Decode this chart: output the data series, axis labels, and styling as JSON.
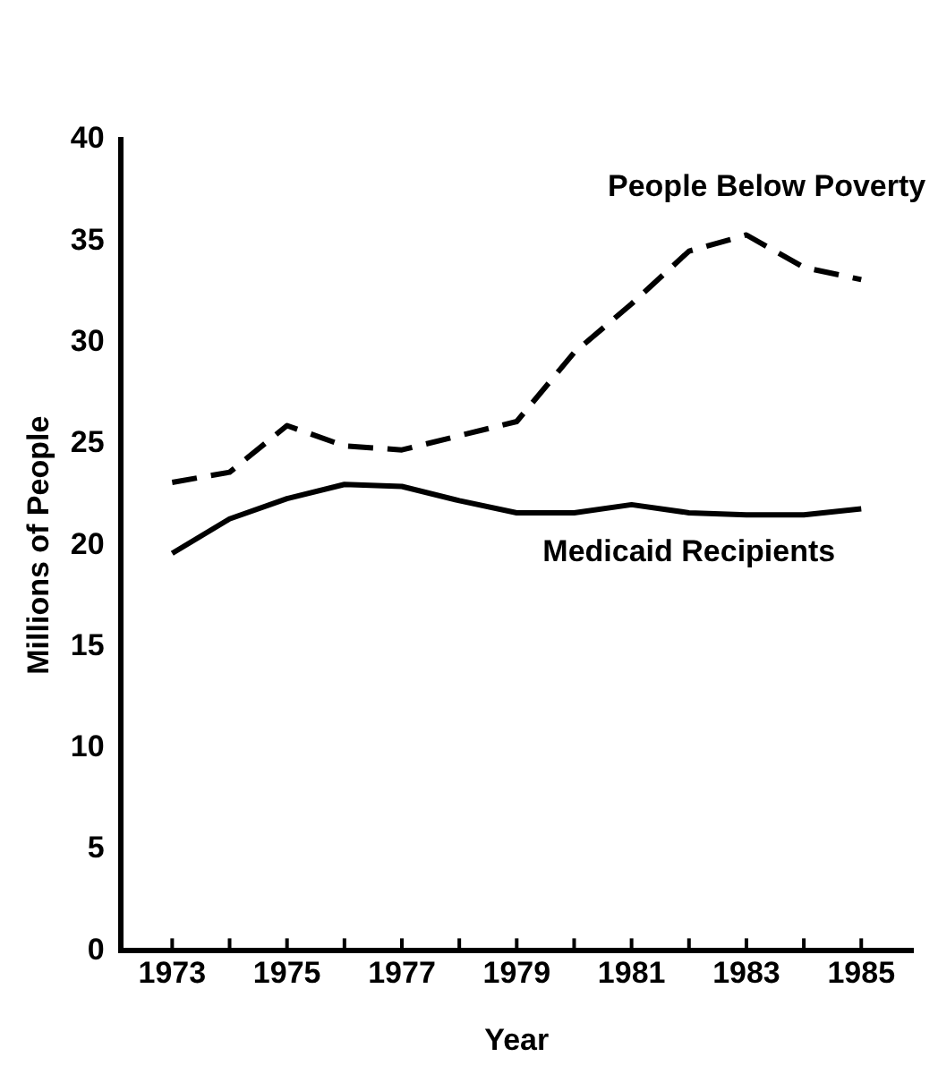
{
  "chart_data": {
    "type": "line",
    "xlabel": "Year",
    "ylabel": "Millions of People",
    "x": [
      1973,
      1974,
      1975,
      1976,
      1977,
      1978,
      1979,
      1980,
      1981,
      1982,
      1983,
      1984,
      1985
    ],
    "series": [
      {
        "name": "People Below Poverty",
        "color": "#000000",
        "line_style": "dashed",
        "values": [
          23.1,
          23.6,
          25.9,
          24.9,
          24.7,
          25.4,
          26.1,
          29.5,
          31.9,
          34.5,
          35.3,
          33.7,
          33.1
        ]
      },
      {
        "name": "Medicaid Recipients",
        "color": "#000000",
        "line_style": "solid",
        "values": [
          19.6,
          21.3,
          22.3,
          23.0,
          22.9,
          22.2,
          21.6,
          21.6,
          22.0,
          21.6,
          21.5,
          21.5,
          21.8
        ]
      }
    ],
    "xlim": [
      1972.1,
      1985.9
    ],
    "xticks": [
      1973,
      {
        "value": 1974,
        "label": null
      },
      1975,
      {
        "value": 1976,
        "label": null
      },
      1977,
      {
        "value": 1978,
        "label": null
      },
      1979,
      {
        "value": 1980,
        "label": null
      },
      1981,
      {
        "value": 1982,
        "label": null
      },
      1983,
      {
        "value": 1984,
        "label": null
      },
      1985
    ],
    "ylim": [
      0,
      40
    ],
    "yticks": [
      0,
      5,
      10,
      15,
      20,
      25,
      30,
      35,
      40
    ],
    "grid": false,
    "legend": false,
    "marker": "none"
  }
}
